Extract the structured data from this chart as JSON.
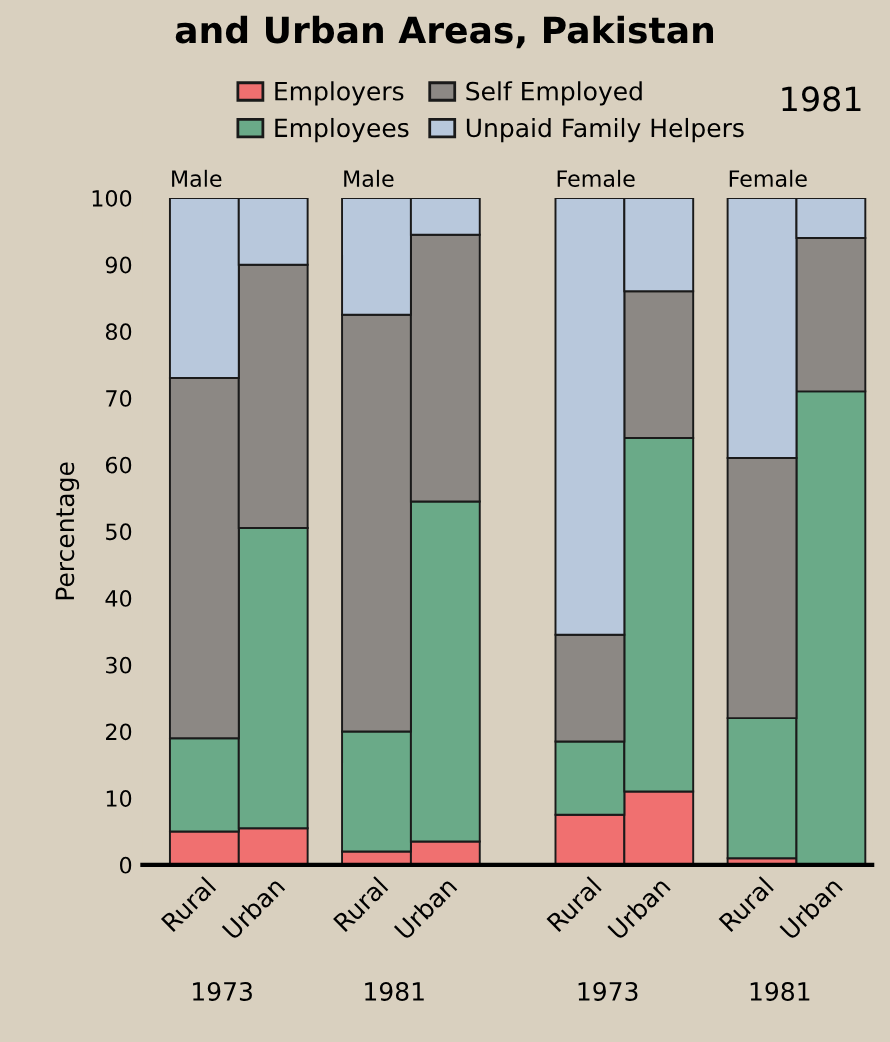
{
  "chart_data": {
    "type": "bar",
    "title": "and Urban Areas, Pakistan",
    "ylabel": "Percentage",
    "stacked": true,
    "categories": [
      "Rural",
      "Urban",
      "Rural",
      "Urban",
      "Rural",
      "Urban",
      "Rural",
      "Urban"
    ],
    "series": [
      {
        "name": "Employers",
        "color": "#f07070",
        "values": [
          5,
          5.5,
          2,
          3.5,
          7.5,
          11,
          1,
          0
        ]
      },
      {
        "name": "Employees",
        "color": "#6aaa88",
        "values": [
          14,
          45,
          18,
          51,
          11,
          53,
          21,
          71
        ]
      },
      {
        "name": "Self Employed",
        "color": "#8c8884",
        "values": [
          54,
          39.5,
          62.5,
          40,
          16,
          22,
          39,
          23
        ]
      },
      {
        "name": "Unpaid Family Helpers",
        "color": "#b8c8dc",
        "values": [
          27,
          10,
          17.5,
          5.5,
          65.5,
          14,
          39,
          6
        ]
      }
    ],
    "ylim": [
      0,
      100
    ],
    "yticks": [
      0,
      10,
      20,
      30,
      40,
      50,
      60,
      70,
      80,
      90,
      100
    ],
    "grid": false,
    "legend": "top",
    "annotations": [
      "1981",
      "Male",
      "Male",
      "Female",
      "Female",
      "1973",
      "1981",
      "1973",
      "1981"
    ]
  }
}
